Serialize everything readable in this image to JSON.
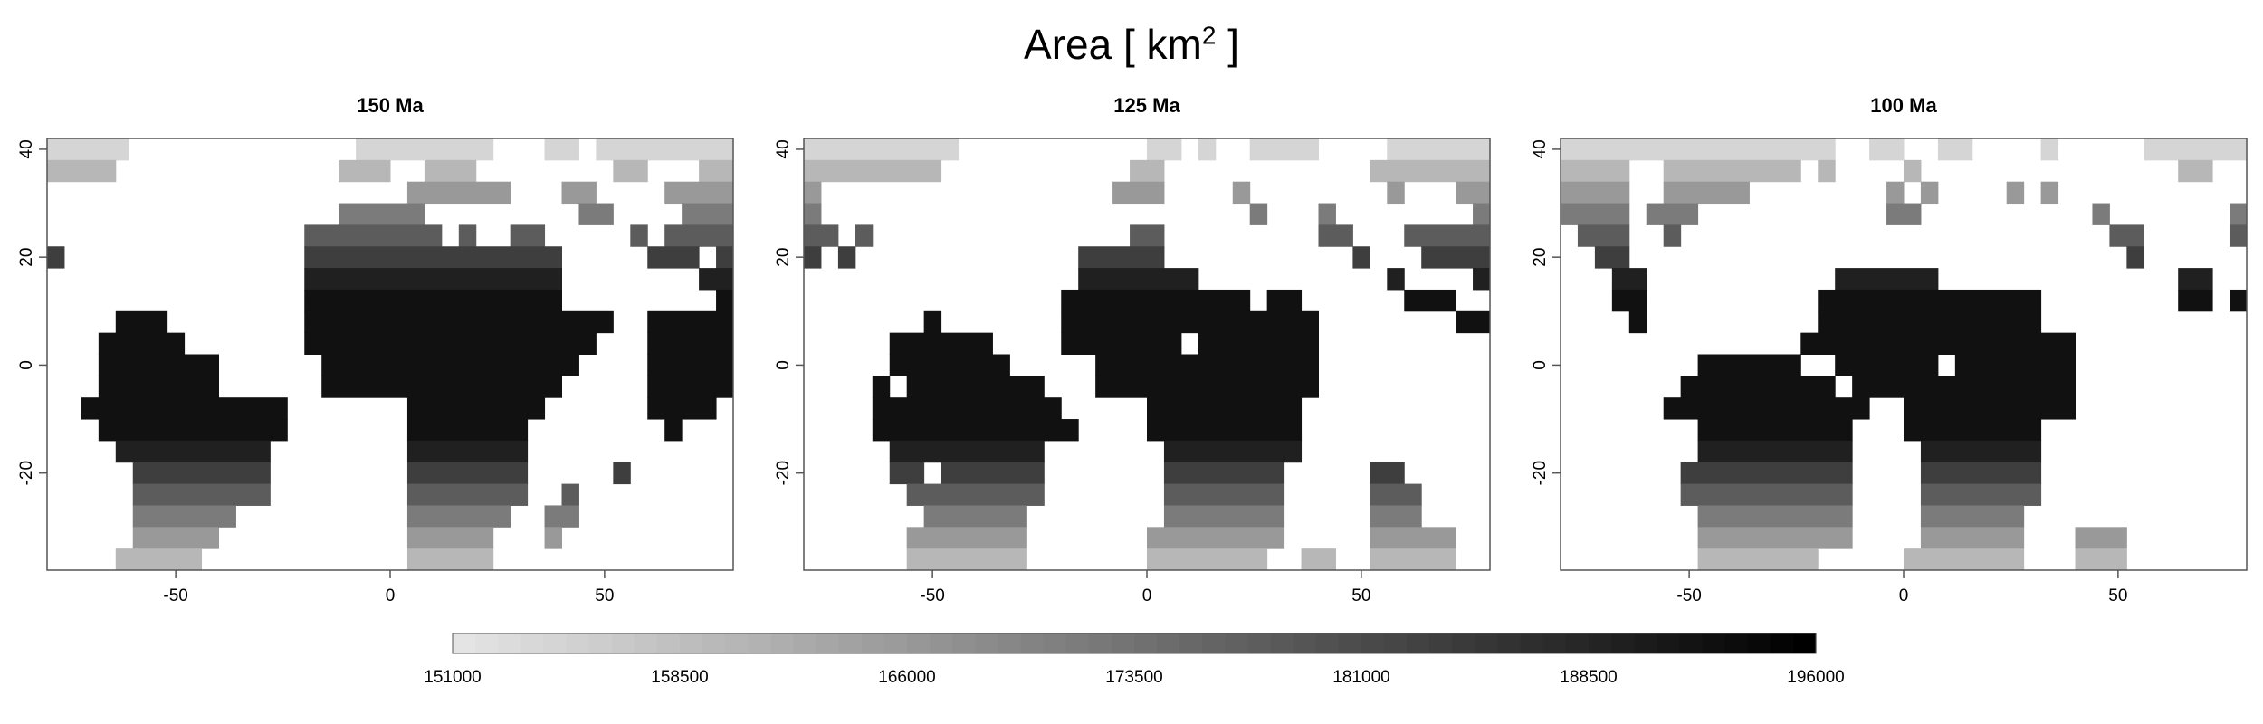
{
  "title": {
    "prefix": "Area [ km",
    "sup": "2",
    "suffix": " ]"
  },
  "chart_data": [
    {
      "type": "heatmap",
      "title": "150 Ma",
      "xlim": [
        -80,
        80
      ],
      "ylim": [
        -38,
        42
      ],
      "xticks": [
        -50,
        0,
        50
      ],
      "yticks": [
        -20,
        0,
        20,
        40
      ],
      "legend": "none",
      "grid": false,
      "bands": [
        {
          "y": 40,
          "spans": [
            [
              -80,
              -61
            ],
            [
              -8,
              24
            ],
            [
              36,
              44
            ],
            [
              48,
              80
            ]
          ]
        },
        {
          "y": 36,
          "spans": [
            [
              -80,
              -64
            ],
            [
              -12,
              0
            ],
            [
              8,
              20
            ],
            [
              52,
              60
            ],
            [
              72,
              80
            ]
          ]
        },
        {
          "y": 32,
          "spans": [
            [
              4,
              28
            ],
            [
              40,
              48
            ],
            [
              64,
              80
            ]
          ]
        },
        {
          "y": 28,
          "spans": [
            [
              -12,
              8
            ],
            [
              44,
              52
            ],
            [
              68,
              80
            ]
          ]
        },
        {
          "y": 24,
          "spans": [
            [
              -20,
              12
            ],
            [
              16,
              20
            ],
            [
              28,
              36
            ],
            [
              56,
              60
            ],
            [
              64,
              80
            ]
          ]
        },
        {
          "y": 20,
          "spans": [
            [
              -80,
              -76
            ],
            [
              -20,
              40
            ],
            [
              60,
              72
            ],
            [
              76,
              80
            ]
          ]
        },
        {
          "y": 16,
          "spans": [
            [
              -20,
              40
            ],
            [
              72,
              76
            ],
            [
              76,
              80
            ]
          ]
        },
        {
          "y": 12,
          "spans": [
            [
              -20,
              40
            ],
            [
              76,
              80
            ]
          ]
        },
        {
          "y": 8,
          "spans": [
            [
              -64,
              -52
            ],
            [
              -20,
              52
            ],
            [
              60,
              80
            ]
          ]
        },
        {
          "y": 4,
          "spans": [
            [
              -68,
              -48
            ],
            [
              -20,
              48
            ],
            [
              60,
              80
            ]
          ]
        },
        {
          "y": 0,
          "spans": [
            [
              -68,
              -40
            ],
            [
              -16,
              44
            ],
            [
              60,
              80
            ]
          ]
        },
        {
          "y": -4,
          "spans": [
            [
              -68,
              -40
            ],
            [
              -16,
              40
            ],
            [
              60,
              80
            ]
          ]
        },
        {
          "y": -8,
          "spans": [
            [
              -72,
              -24
            ],
            [
              4,
              36
            ],
            [
              60,
              76
            ]
          ]
        },
        {
          "y": -12,
          "spans": [
            [
              -68,
              -24
            ],
            [
              4,
              32
            ],
            [
              64,
              68
            ]
          ]
        },
        {
          "y": -16,
          "spans": [
            [
              -64,
              -28
            ],
            [
              4,
              32
            ]
          ]
        },
        {
          "y": -20,
          "spans": [
            [
              -60,
              -28
            ],
            [
              4,
              32
            ],
            [
              52,
              56
            ]
          ]
        },
        {
          "y": -24,
          "spans": [
            [
              -60,
              -28
            ],
            [
              4,
              32
            ],
            [
              40,
              44
            ]
          ]
        },
        {
          "y": -28,
          "spans": [
            [
              -60,
              -36
            ],
            [
              4,
              28
            ],
            [
              36,
              44
            ]
          ]
        },
        {
          "y": -32,
          "spans": [
            [
              -60,
              -40
            ],
            [
              4,
              24
            ],
            [
              36,
              40
            ]
          ]
        },
        {
          "y": -36,
          "spans": [
            [
              -64,
              -44
            ],
            [
              4,
              24
            ]
          ]
        }
      ]
    },
    {
      "type": "heatmap",
      "title": "125 Ma",
      "xlim": [
        -80,
        80
      ],
      "ylim": [
        -38,
        42
      ],
      "xticks": [
        -50,
        0,
        50
      ],
      "yticks": [
        -20,
        0,
        20,
        40
      ],
      "legend": "none",
      "grid": false,
      "bands": [
        {
          "y": 40,
          "spans": [
            [
              -80,
              -44
            ],
            [
              0,
              8
            ],
            [
              12,
              16
            ],
            [
              24,
              40
            ],
            [
              56,
              80
            ]
          ]
        },
        {
          "y": 36,
          "spans": [
            [
              -80,
              -48
            ],
            [
              -4,
              4
            ],
            [
              52,
              80
            ]
          ]
        },
        {
          "y": 32,
          "spans": [
            [
              -80,
              -76
            ],
            [
              -8,
              4
            ],
            [
              20,
              24
            ],
            [
              56,
              60
            ],
            [
              72,
              80
            ]
          ]
        },
        {
          "y": 28,
          "spans": [
            [
              -80,
              -76
            ],
            [
              24,
              28
            ],
            [
              40,
              44
            ],
            [
              76,
              80
            ]
          ]
        },
        {
          "y": 24,
          "spans": [
            [
              -80,
              -72
            ],
            [
              -68,
              -64
            ],
            [
              -4,
              4
            ],
            [
              40,
              48
            ],
            [
              60,
              80
            ]
          ]
        },
        {
          "y": 20,
          "spans": [
            [
              -80,
              -76
            ],
            [
              -72,
              -68
            ],
            [
              -16,
              4
            ],
            [
              48,
              52
            ],
            [
              64,
              80
            ]
          ]
        },
        {
          "y": 16,
          "spans": [
            [
              -16,
              12
            ],
            [
              56,
              60
            ],
            [
              76,
              80
            ]
          ]
        },
        {
          "y": 12,
          "spans": [
            [
              -20,
              24
            ],
            [
              28,
              36
            ],
            [
              60,
              72
            ]
          ]
        },
        {
          "y": 8,
          "spans": [
            [
              -52,
              -48
            ],
            [
              -20,
              40
            ],
            [
              72,
              80
            ]
          ]
        },
        {
          "y": 4,
          "spans": [
            [
              -60,
              -36
            ],
            [
              -20,
              8
            ],
            [
              12,
              40
            ]
          ]
        },
        {
          "y": 0,
          "spans": [
            [
              -60,
              -32
            ],
            [
              -12,
              40
            ]
          ]
        },
        {
          "y": -4,
          "spans": [
            [
              -64,
              -60
            ],
            [
              -56,
              -24
            ],
            [
              -12,
              40
            ]
          ]
        },
        {
          "y": -8,
          "spans": [
            [
              -64,
              -20
            ],
            [
              0,
              36
            ]
          ]
        },
        {
          "y": -12,
          "spans": [
            [
              -64,
              -16
            ],
            [
              0,
              36
            ]
          ]
        },
        {
          "y": -16,
          "spans": [
            [
              -60,
              -24
            ],
            [
              4,
              36
            ]
          ]
        },
        {
          "y": -20,
          "spans": [
            [
              -60,
              -52
            ],
            [
              -48,
              -24
            ],
            [
              4,
              32
            ],
            [
              52,
              60
            ]
          ]
        },
        {
          "y": -24,
          "spans": [
            [
              -56,
              -24
            ],
            [
              4,
              32
            ],
            [
              52,
              64
            ]
          ]
        },
        {
          "y": -28,
          "spans": [
            [
              -52,
              -28
            ],
            [
              4,
              32
            ],
            [
              52,
              64
            ]
          ]
        },
        {
          "y": -32,
          "spans": [
            [
              -56,
              -28
            ],
            [
              0,
              32
            ],
            [
              52,
              72
            ]
          ]
        },
        {
          "y": -36,
          "spans": [
            [
              -56,
              -28
            ],
            [
              0,
              28
            ],
            [
              36,
              44
            ],
            [
              52,
              72
            ]
          ]
        },
        {
          "y": -40,
          "spans": [
            [
              -56,
              -36
            ],
            [
              0,
              24
            ],
            [
              36,
              44
            ],
            [
              48,
              72
            ]
          ]
        }
      ]
    },
    {
      "type": "heatmap",
      "title": "100 Ma",
      "xlim": [
        -80,
        80
      ],
      "ylim": [
        -38,
        42
      ],
      "xticks": [
        -50,
        0,
        50
      ],
      "yticks": [
        -20,
        0,
        20,
        40
      ],
      "legend": "none",
      "grid": false,
      "bands": [
        {
          "y": 40,
          "spans": [
            [
              -80,
              -16
            ],
            [
              -8,
              0
            ],
            [
              8,
              16
            ],
            [
              32,
              36
            ],
            [
              56,
              80
            ]
          ]
        },
        {
          "y": 36,
          "spans": [
            [
              -80,
              -64
            ],
            [
              -56,
              -24
            ],
            [
              -20,
              -16
            ],
            [
              0,
              4
            ],
            [
              64,
              72
            ]
          ]
        },
        {
          "y": 32,
          "spans": [
            [
              -80,
              -64
            ],
            [
              -56,
              -36
            ],
            [
              -4,
              0
            ],
            [
              4,
              8
            ],
            [
              24,
              28
            ],
            [
              32,
              36
            ]
          ]
        },
        {
          "y": 28,
          "spans": [
            [
              -80,
              -64
            ],
            [
              -60,
              -48
            ],
            [
              -4,
              4
            ],
            [
              44,
              48
            ],
            [
              76,
              80
            ]
          ]
        },
        {
          "y": 24,
          "spans": [
            [
              -76,
              -64
            ],
            [
              -56,
              -52
            ],
            [
              48,
              56
            ],
            [
              76,
              80
            ]
          ]
        },
        {
          "y": 20,
          "spans": [
            [
              -72,
              -64
            ],
            [
              52,
              56
            ]
          ]
        },
        {
          "y": 16,
          "spans": [
            [
              -68,
              -60
            ],
            [
              -16,
              8
            ],
            [
              64,
              72
            ]
          ]
        },
        {
          "y": 12,
          "spans": [
            [
              -68,
              -60
            ],
            [
              -20,
              32
            ],
            [
              64,
              72
            ],
            [
              76,
              80
            ]
          ]
        },
        {
          "y": 8,
          "spans": [
            [
              -64,
              -60
            ],
            [
              -20,
              32
            ]
          ]
        },
        {
          "y": 4,
          "spans": [
            [
              -24,
              -20
            ],
            [
              -20,
              40
            ]
          ]
        },
        {
          "y": 0,
          "spans": [
            [
              -48,
              -24
            ],
            [
              -16,
              8
            ],
            [
              12,
              40
            ]
          ]
        },
        {
          "y": -4,
          "spans": [
            [
              -52,
              -16
            ],
            [
              -12,
              40
            ]
          ]
        },
        {
          "y": -8,
          "spans": [
            [
              -56,
              -8
            ],
            [
              0,
              40
            ]
          ]
        },
        {
          "y": -12,
          "spans": [
            [
              -48,
              -12
            ],
            [
              0,
              32
            ]
          ]
        },
        {
          "y": -16,
          "spans": [
            [
              -48,
              -12
            ],
            [
              4,
              32
            ]
          ]
        },
        {
          "y": -20,
          "spans": [
            [
              -52,
              -12
            ],
            [
              4,
              32
            ]
          ]
        },
        {
          "y": -24,
          "spans": [
            [
              -52,
              -12
            ],
            [
              4,
              32
            ]
          ]
        },
        {
          "y": -28,
          "spans": [
            [
              -48,
              -12
            ],
            [
              4,
              28
            ]
          ]
        },
        {
          "y": -32,
          "spans": [
            [
              -48,
              -12
            ],
            [
              4,
              28
            ],
            [
              40,
              52
            ]
          ]
        },
        {
          "y": -36,
          "spans": [
            [
              -48,
              -20
            ],
            [
              0,
              28
            ],
            [
              40,
              52
            ]
          ]
        }
      ]
    }
  ],
  "colorbar": {
    "ticks": [
      "151000",
      "158500",
      "166000",
      "173500",
      "181000",
      "188500",
      "196000"
    ],
    "range": [
      151000,
      196000
    ],
    "colors": {
      "low": "#e4e4e4",
      "high": "#000000"
    }
  }
}
